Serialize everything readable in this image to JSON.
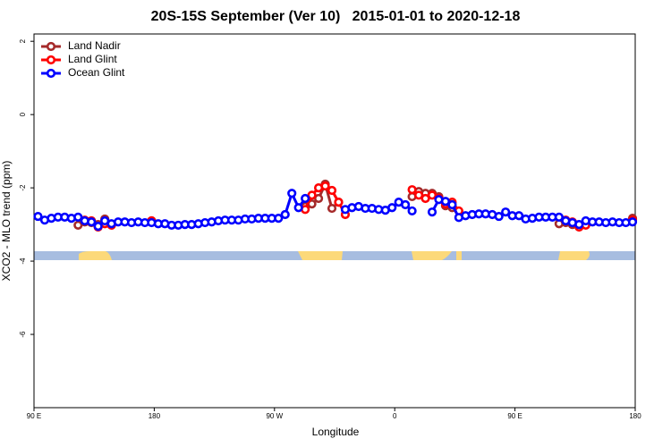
{
  "chart_data": {
    "type": "line",
    "title": "20S-15S September (Ver 10)   2015-01-01 to 2020-12-18",
    "x_label": "Longitude",
    "y_label": "XCO2 - MLO trend (ppm)",
    "xlim": [
      90,
      540
    ],
    "ylim": [
      -8,
      2.2
    ],
    "xticks": [
      {
        "value": 90,
        "label": "90 E"
      },
      180,
      {
        "value": 270,
        "label": "90 W"
      },
      {
        "value": 360,
        "label": "0"
      },
      {
        "value": 450,
        "label": "90 E"
      },
      {
        "value": 540,
        "label": "180"
      }
    ],
    "yticks": [
      -6,
      -4,
      -2,
      0,
      2
    ],
    "legend": "top-left",
    "series": [
      {
        "name": "Land Nadir",
        "color": "#a52a2a",
        "x": [
          123,
          128,
          133,
          138,
          143,
          148,
          153,
          178,
          183,
          293,
          298,
          303,
          308,
          313,
          318,
          323,
          373,
          378,
          383,
          388,
          393,
          398,
          403,
          408,
          483,
          488,
          493,
          498,
          503,
          508,
          538
        ],
        "values": [
          -3.02,
          -2.93,
          -2.95,
          -3.0,
          -2.85,
          -3.0,
          null,
          -2.9,
          null,
          -2.51,
          -2.44,
          -2.29,
          -1.9,
          -2.56,
          -2.39,
          null,
          -2.24,
          -2.1,
          -2.15,
          -2.15,
          -2.24,
          -2.49,
          -2.54,
          null,
          -2.98,
          -2.95,
          -3.0,
          -3.02,
          -2.98,
          null,
          -2.83
        ]
      },
      {
        "name": "Land Glint",
        "color": "#ff0000",
        "x": [
          128,
          133,
          138,
          143,
          148,
          153,
          178,
          183,
          293,
          298,
          303,
          308,
          313,
          318,
          323,
          328,
          373,
          378,
          383,
          388,
          393,
          398,
          403,
          408,
          413,
          488,
          493,
          498,
          503,
          508,
          538
        ],
        "values": [
          -2.88,
          -2.9,
          -3.07,
          -2.98,
          -3.02,
          null,
          -2.9,
          null,
          -2.59,
          -2.2,
          -2.0,
          -1.95,
          -2.07,
          -2.39,
          -2.73,
          null,
          -2.05,
          -2.2,
          -2.29,
          -2.2,
          -2.29,
          -2.44,
          -2.39,
          -2.63,
          null,
          -2.88,
          -2.93,
          -3.07,
          -3.02,
          null,
          -2.88
        ]
      },
      {
        "name": "Ocean Glint",
        "color": "#0000ff",
        "x": [
          93,
          98,
          103,
          108,
          113,
          118,
          123,
          128,
          133,
          138,
          143,
          148,
          153,
          158,
          163,
          168,
          173,
          178,
          183,
          188,
          193,
          198,
          203,
          208,
          213,
          218,
          223,
          228,
          233,
          238,
          243,
          248,
          253,
          258,
          263,
          268,
          273,
          278,
          283,
          288,
          293,
          298,
          303,
          308,
          313,
          318,
          323,
          328,
          333,
          338,
          343,
          348,
          353,
          358,
          363,
          368,
          373,
          378,
          383,
          388,
          393,
          398,
          403,
          408,
          413,
          418,
          423,
          428,
          433,
          438,
          443,
          448,
          453,
          458,
          463,
          468,
          473,
          478,
          483,
          488,
          493,
          498,
          503,
          508,
          513,
          518,
          523,
          528,
          533,
          538
        ],
        "values": [
          -2.78,
          -2.88,
          -2.83,
          -2.8,
          -2.8,
          -2.83,
          -2.8,
          -2.9,
          -2.93,
          -3.05,
          -2.9,
          -2.98,
          -2.93,
          -2.93,
          -2.95,
          -2.93,
          -2.95,
          -2.95,
          -2.98,
          -2.98,
          -3.02,
          -3.02,
          -3.0,
          -3.0,
          -2.98,
          -2.95,
          -2.93,
          -2.9,
          -2.88,
          -2.88,
          -2.88,
          -2.85,
          -2.85,
          -2.83,
          -2.83,
          -2.83,
          -2.83,
          -2.73,
          -2.15,
          -2.54,
          -2.29,
          null,
          null,
          null,
          null,
          null,
          -2.59,
          -2.54,
          -2.51,
          -2.56,
          -2.56,
          -2.59,
          -2.61,
          -2.54,
          -2.39,
          -2.46,
          -2.63,
          null,
          null,
          -2.66,
          -2.32,
          -2.37,
          -2.46,
          -2.81,
          -2.76,
          -2.73,
          -2.71,
          -2.71,
          -2.73,
          -2.78,
          -2.66,
          -2.76,
          -2.76,
          -2.85,
          -2.83,
          -2.8,
          -2.8,
          -2.8,
          -2.8,
          -2.9,
          -2.95,
          -3.0,
          -2.9,
          -2.93,
          -2.93,
          -2.95,
          -2.93,
          -2.95,
          -2.95,
          -2.93
        ]
      }
    ]
  }
}
